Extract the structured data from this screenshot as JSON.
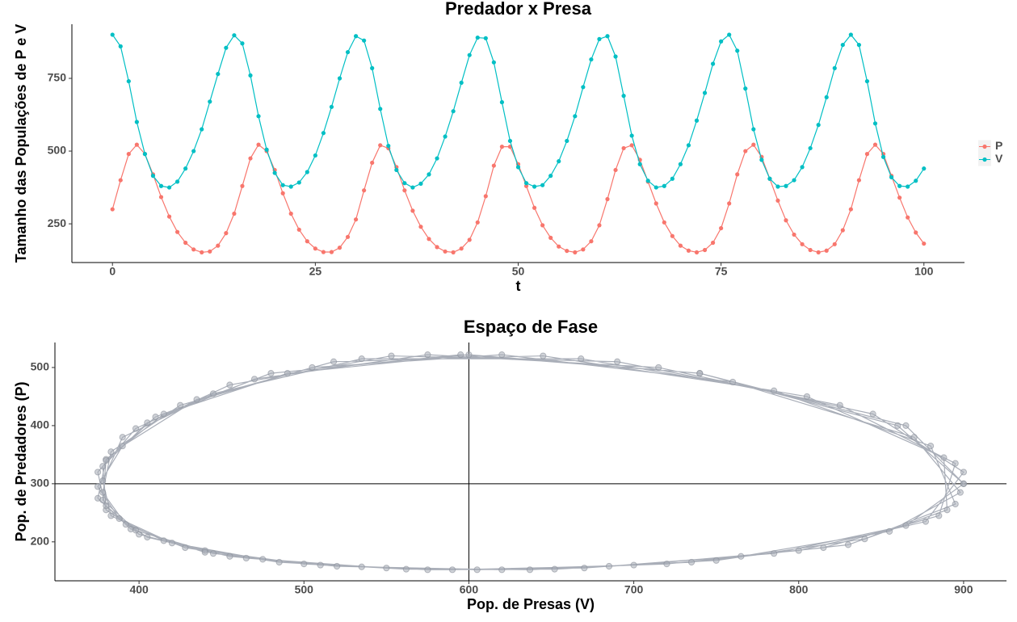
{
  "chart_data": [
    {
      "type": "line",
      "title": "Predador x Presa",
      "x_label": "t",
      "y_label": "Tamanho das Populações de P e V",
      "x": [
        0,
        1,
        2,
        3,
        4,
        5,
        6,
        7,
        8,
        9,
        10,
        11,
        12,
        13,
        14,
        15,
        16,
        17,
        18,
        19,
        20,
        21,
        22,
        23,
        24,
        25,
        26,
        27,
        28,
        29,
        30,
        31,
        32,
        33,
        34,
        35,
        36,
        37,
        38,
        39,
        40,
        41,
        42,
        43,
        44,
        45,
        46,
        47,
        48,
        49,
        50,
        51,
        52,
        53,
        54,
        55,
        56,
        57,
        58,
        59,
        60,
        61,
        62,
        63,
        64,
        65,
        66,
        67,
        68,
        69,
        70,
        71,
        72,
        73,
        74,
        75,
        76,
        77,
        78,
        79,
        80,
        81,
        82,
        83,
        84,
        85,
        86,
        87,
        88,
        89,
        90,
        91,
        92,
        93,
        94,
        95,
        96,
        97,
        98,
        99,
        100
      ],
      "series": [
        {
          "name": "P",
          "color": "#F8766D",
          "values": [
            300,
            400,
            490,
            522,
            490,
            420,
            342,
            275,
            222,
            185,
            162,
            152,
            155,
            175,
            218,
            285,
            380,
            475,
            522,
            500,
            435,
            355,
            285,
            230,
            190,
            165,
            153,
            153,
            168,
            205,
            265,
            365,
            460,
            520,
            510,
            445,
            365,
            295,
            240,
            198,
            170,
            155,
            152,
            165,
            195,
            255,
            345,
            450,
            515,
            515,
            455,
            380,
            305,
            245,
            202,
            172,
            157,
            152,
            162,
            190,
            245,
            335,
            435,
            510,
            520,
            470,
            395,
            320,
            255,
            208,
            175,
            158,
            152,
            160,
            185,
            235,
            320,
            420,
            500,
            522,
            480,
            405,
            330,
            262,
            213,
            180,
            160,
            152,
            158,
            180,
            228,
            300,
            400,
            490,
            522,
            490,
            415,
            340,
            272,
            220,
            182
          ]
        },
        {
          "name": "V",
          "color": "#00BFC4",
          "values": [
            900,
            860,
            740,
            600,
            490,
            415,
            380,
            375,
            395,
            440,
            500,
            575,
            670,
            765,
            855,
            898,
            870,
            760,
            620,
            505,
            425,
            383,
            378,
            392,
            428,
            485,
            562,
            652,
            750,
            840,
            895,
            880,
            785,
            645,
            518,
            435,
            390,
            375,
            388,
            420,
            475,
            550,
            637,
            735,
            830,
            890,
            888,
            805,
            668,
            535,
            445,
            390,
            378,
            383,
            415,
            465,
            535,
            620,
            720,
            815,
            885,
            895,
            825,
            690,
            553,
            455,
            398,
            375,
            380,
            405,
            455,
            520,
            605,
            700,
            800,
            877,
            900,
            845,
            715,
            575,
            470,
            405,
            378,
            380,
            400,
            445,
            510,
            590,
            685,
            785,
            865,
            900,
            865,
            740,
            595,
            480,
            410,
            380,
            378,
            398,
            440
          ]
        }
      ],
      "xlim": [
        -5,
        105
      ],
      "xticks": [
        0,
        25,
        50,
        75,
        100
      ],
      "ylim": [
        117,
        936
      ],
      "yticks": [
        250,
        500,
        750
      ],
      "legend": "right"
    },
    {
      "type": "scatter",
      "title": "Espaço de Fase",
      "x_label": "Pop. de Presas (V)",
      "y_label": "Pop. de Predadores (P)",
      "color": "#A9AEB8",
      "x": [
        900,
        860,
        740,
        600,
        490,
        415,
        380,
        375,
        395,
        440,
        500,
        575,
        670,
        765,
        855,
        898,
        870,
        760,
        620,
        505,
        425,
        383,
        378,
        392,
        428,
        485,
        562,
        652,
        750,
        840,
        895,
        880,
        785,
        645,
        518,
        435,
        390,
        375,
        388,
        420,
        475,
        550,
        637,
        735,
        830,
        890,
        888,
        805,
        668,
        535,
        445,
        390,
        378,
        383,
        415,
        465,
        535,
        620,
        720,
        815,
        885,
        895,
        825,
        690,
        553,
        455,
        398,
        375,
        380,
        405,
        455,
        520,
        605,
        700,
        800,
        877,
        900,
        845,
        715,
        575,
        470,
        405,
        378,
        380,
        400,
        445,
        510,
        590,
        685,
        785,
        865,
        900,
        865,
        740,
        595,
        480,
        410,
        380,
        378,
        398,
        440
      ],
      "y": [
        300,
        400,
        490,
        522,
        490,
        420,
        342,
        275,
        222,
        185,
        162,
        152,
        155,
        175,
        218,
        285,
        380,
        475,
        522,
        500,
        435,
        355,
        285,
        230,
        190,
        165,
        153,
        153,
        168,
        205,
        265,
        365,
        460,
        520,
        510,
        445,
        365,
        295,
        240,
        198,
        170,
        155,
        152,
        165,
        195,
        255,
        345,
        450,
        515,
        515,
        455,
        380,
        305,
        245,
        202,
        172,
        157,
        152,
        162,
        190,
        245,
        335,
        435,
        510,
        520,
        470,
        395,
        320,
        255,
        208,
        175,
        158,
        152,
        160,
        185,
        235,
        320,
        420,
        500,
        522,
        480,
        405,
        330,
        262,
        213,
        180,
        160,
        152,
        158,
        180,
        228,
        300,
        400,
        490,
        522,
        490,
        415,
        340,
        272,
        220,
        182
      ],
      "xlim": [
        349,
        926
      ],
      "xticks": [
        400,
        500,
        600,
        700,
        800,
        900
      ],
      "ylim": [
        133,
        543
      ],
      "yticks": [
        200,
        300,
        400,
        500
      ],
      "vline": 600,
      "hline": 300
    }
  ]
}
